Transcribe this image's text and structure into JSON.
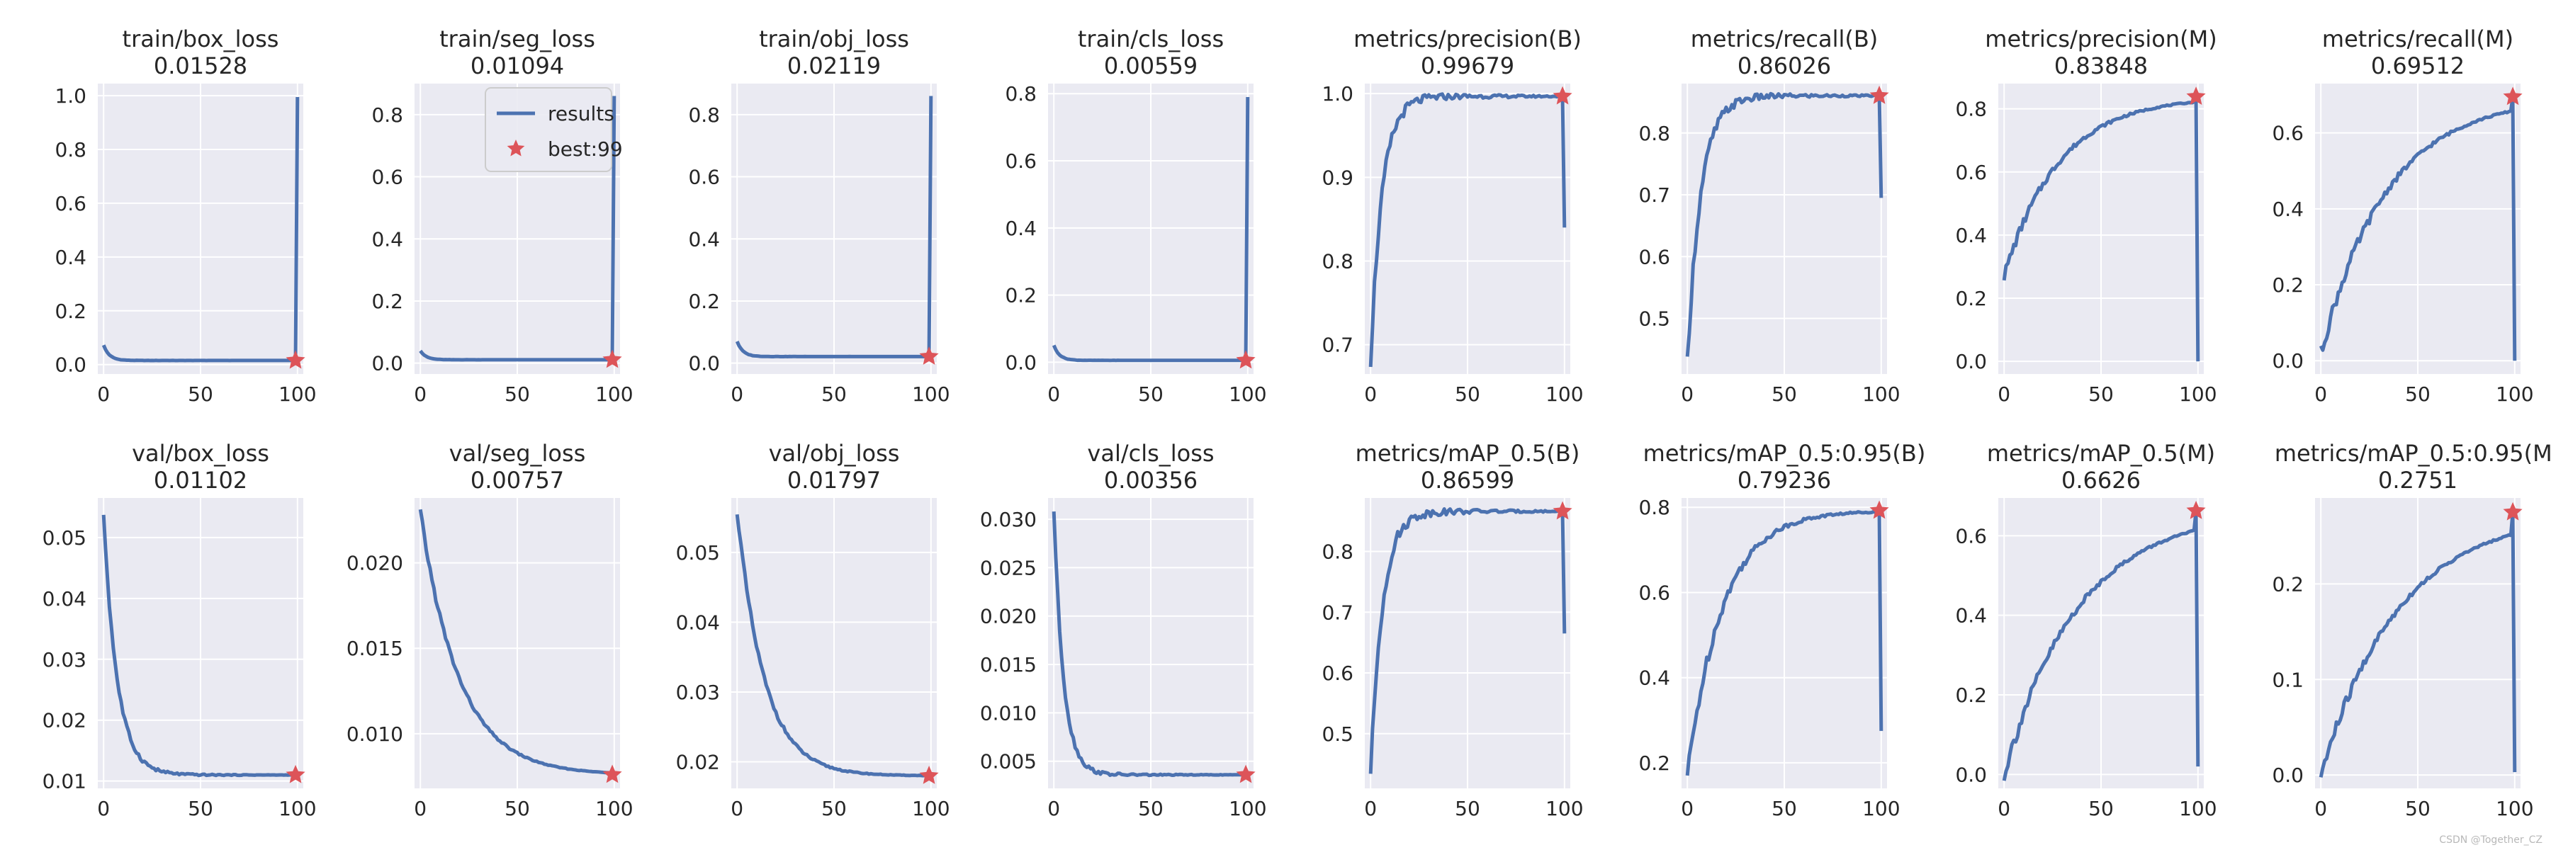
{
  "colors": {
    "line": "#4c72b0",
    "best_marker": "#dd5459",
    "axes_bg": "#eaeaf2",
    "grid": "#ffffff",
    "text": "#262626"
  },
  "watermark": "CSDN @Together_CZ",
  "chart_data": [
    {
      "type": "line",
      "metric": "train/box_loss",
      "final_value": "0.01528",
      "series": [
        {
          "name": "results",
          "start": 0.072,
          "decay_to": 0.0153,
          "last": 0.995
        }
      ],
      "x_ticks": [
        "0",
        "50",
        "100"
      ],
      "y_ticks": [
        "0.0",
        "0.2",
        "0.4",
        "0.6",
        "0.8",
        "1.0"
      ],
      "xlim": [
        -3,
        103
      ],
      "ylim": [
        -0.035,
        1.045
      ],
      "best": {
        "x": 99,
        "y": 0.0153
      }
    },
    {
      "type": "line",
      "metric": "train/seg_loss",
      "final_value": "0.01094",
      "series": [
        {
          "name": "results",
          "start": 0.04,
          "decay_to": 0.0109,
          "last": 0.86
        }
      ],
      "x_ticks": [
        "0",
        "50",
        "100"
      ],
      "y_ticks": [
        "0.0",
        "0.2",
        "0.4",
        "0.6",
        "0.8"
      ],
      "xlim": [
        -3,
        103
      ],
      "ylim": [
        -0.035,
        0.9
      ],
      "best": {
        "x": 99,
        "y": 0.0109
      },
      "legend": {
        "entries": [
          "results",
          "best:99"
        ],
        "placement": "top-right"
      }
    },
    {
      "type": "line",
      "metric": "train/obj_loss",
      "final_value": "0.02119",
      "series": [
        {
          "name": "results",
          "start": 0.07,
          "decay_to": 0.0212,
          "last": 0.86
        }
      ],
      "x_ticks": [
        "0",
        "50",
        "100"
      ],
      "y_ticks": [
        "0.0",
        "0.2",
        "0.4",
        "0.6",
        "0.8"
      ],
      "xlim": [
        -3,
        103
      ],
      "ylim": [
        -0.035,
        0.9
      ],
      "best": {
        "x": 99,
        "y": 0.0212
      }
    },
    {
      "type": "line",
      "metric": "train/cls_loss",
      "final_value": "0.00559",
      "series": [
        {
          "name": "results",
          "start": 0.05,
          "decay_to": 0.0056,
          "last": 0.79
        }
      ],
      "x_ticks": [
        "0",
        "50",
        "100"
      ],
      "y_ticks": [
        "0.0",
        "0.2",
        "0.4",
        "0.6",
        "0.8"
      ],
      "xlim": [
        -3,
        103
      ],
      "ylim": [
        -0.035,
        0.83
      ],
      "best": {
        "x": 99,
        "y": 0.0056
      }
    },
    {
      "type": "line",
      "metric": "metrics/precision(B)",
      "final_value": "0.99679",
      "series": [
        {
          "name": "results",
          "start": 0.68,
          "plateau": 0.9968,
          "rise_rate": 6,
          "last": 0.84
        }
      ],
      "x_ticks": [
        "0",
        "50",
        "100"
      ],
      "y_ticks": [
        "0.7",
        "0.8",
        "0.9",
        "1.0"
      ],
      "xlim": [
        -3,
        103
      ],
      "ylim": [
        0.665,
        1.012
      ],
      "best": {
        "x": 99,
        "y": 0.9968
      }
    },
    {
      "type": "line",
      "metric": "metrics/recall(B)",
      "final_value": "0.86026",
      "series": [
        {
          "name": "results",
          "start": 0.43,
          "plateau": 0.8603,
          "rise_rate": 7,
          "last": 0.695
        }
      ],
      "x_ticks": [
        "0",
        "50",
        "100"
      ],
      "y_ticks": [
        "0.5",
        "0.6",
        "0.7",
        "0.8"
      ],
      "xlim": [
        -3,
        103
      ],
      "ylim": [
        0.41,
        0.88
      ],
      "best": {
        "x": 99,
        "y": 0.8603
      }
    },
    {
      "type": "line",
      "metric": "metrics/precision(M)",
      "final_value": "0.83848",
      "series": [
        {
          "name": "results",
          "start": 0.27,
          "plateau": 0.8385,
          "rise_rate": 28,
          "last": 0.0
        }
      ],
      "x_ticks": [
        "0",
        "50",
        "100"
      ],
      "y_ticks": [
        "0.0",
        "0.2",
        "0.4",
        "0.6",
        "0.8"
      ],
      "xlim": [
        -3,
        103
      ],
      "ylim": [
        -0.04,
        0.88
      ],
      "best": {
        "x": 99,
        "y": 0.8385
      }
    },
    {
      "type": "line",
      "metric": "metrics/recall(M)",
      "final_value": "0.69512",
      "series": [
        {
          "name": "results",
          "start": 0.02,
          "plateau": 0.6951,
          "rise_rate": 34,
          "last": 0.0
        }
      ],
      "x_ticks": [
        "0",
        "50",
        "100"
      ],
      "y_ticks": [
        "0.0",
        "0.2",
        "0.4",
        "0.6"
      ],
      "xlim": [
        -3,
        103
      ],
      "ylim": [
        -0.035,
        0.73
      ],
      "best": {
        "x": 99,
        "y": 0.6951
      }
    },
    {
      "type": "line",
      "metric": "val/box_loss",
      "final_value": "0.01102",
      "series": [
        {
          "name": "results",
          "start": 0.054,
          "decay_to": 0.011,
          "decay_rate": 7
        }
      ],
      "x_ticks": [
        "0",
        "50",
        "100"
      ],
      "y_ticks": [
        "0.01",
        "0.02",
        "0.03",
        "0.04",
        "0.05"
      ],
      "xlim": [
        -3,
        103
      ],
      "ylim": [
        0.0088,
        0.0565
      ],
      "best": {
        "x": 99,
        "y": 0.011
      }
    },
    {
      "type": "line",
      "metric": "val/seg_loss",
      "final_value": "0.00757",
      "series": [
        {
          "name": "results",
          "start": 0.023,
          "decay_to": 0.0076,
          "decay_rate": 20
        }
      ],
      "x_ticks": [
        "0",
        "50",
        "100"
      ],
      "y_ticks": [
        "0.010",
        "0.015",
        "0.020"
      ],
      "xlim": [
        -3,
        103
      ],
      "ylim": [
        0.0068,
        0.0238
      ],
      "best": {
        "x": 99,
        "y": 0.0076
      }
    },
    {
      "type": "line",
      "metric": "val/obj_loss",
      "final_value": "0.01797",
      "series": [
        {
          "name": "results",
          "start": 0.056,
          "decay_to": 0.018,
          "decay_rate": 14
        }
      ],
      "x_ticks": [
        "0",
        "50",
        "100"
      ],
      "y_ticks": [
        "0.02",
        "0.03",
        "0.04",
        "0.05"
      ],
      "xlim": [
        -3,
        103
      ],
      "ylim": [
        0.0162,
        0.0578
      ],
      "best": {
        "x": 99,
        "y": 0.018
      }
    },
    {
      "type": "line",
      "metric": "val/cls_loss",
      "final_value": "0.00356",
      "series": [
        {
          "name": "results",
          "start": 0.031,
          "decay_to": 0.0036,
          "decay_rate": 5
        }
      ],
      "x_ticks": [
        "0",
        "50",
        "100"
      ],
      "y_ticks": [
        "0.005",
        "0.010",
        "0.015",
        "0.020",
        "0.025",
        "0.030"
      ],
      "xlim": [
        -3,
        103
      ],
      "ylim": [
        0.0022,
        0.0322
      ],
      "best": {
        "x": 99,
        "y": 0.0036
      }
    },
    {
      "type": "line",
      "metric": "metrics/mAP_0.5(B)",
      "final_value": "0.86599",
      "series": [
        {
          "name": "results",
          "start": 0.43,
          "plateau": 0.866,
          "rise_rate": 6,
          "last": 0.665
        }
      ],
      "x_ticks": [
        "0",
        "50",
        "100"
      ],
      "y_ticks": [
        "0.5",
        "0.6",
        "0.7",
        "0.8"
      ],
      "xlim": [
        -3,
        103
      ],
      "ylim": [
        0.41,
        0.888
      ],
      "best": {
        "x": 99,
        "y": 0.866
      }
    },
    {
      "type": "line",
      "metric": "metrics/mAP_0.5:0.95(B)",
      "final_value": "0.79236",
      "series": [
        {
          "name": "results",
          "start": 0.17,
          "plateau": 0.7924,
          "rise_rate": 18,
          "last": 0.275
        }
      ],
      "x_ticks": [
        "0",
        "50",
        "100"
      ],
      "y_ticks": [
        "0.2",
        "0.4",
        "0.6",
        "0.8"
      ],
      "xlim": [
        -3,
        103
      ],
      "ylim": [
        0.14,
        0.822
      ],
      "best": {
        "x": 99,
        "y": 0.7924
      }
    },
    {
      "type": "line",
      "metric": "metrics/mAP_0.5(M)",
      "final_value": "0.6626",
      "series": [
        {
          "name": "results",
          "start": 0.0,
          "plateau": 0.6626,
          "rise_rate": 38,
          "last": 0.02
        }
      ],
      "x_ticks": [
        "0",
        "50",
        "100"
      ],
      "y_ticks": [
        "0.0",
        "0.2",
        "0.4",
        "0.6"
      ],
      "xlim": [
        -3,
        103
      ],
      "ylim": [
        -0.035,
        0.695
      ],
      "best": {
        "x": 99,
        "y": 0.6626
      }
    },
    {
      "type": "line",
      "metric": "metrics/mAP_0.5:0.95(M)",
      "final_value": "0.2751",
      "series": [
        {
          "name": "results",
          "start": 0.0,
          "plateau": 0.2751,
          "rise_rate": 40,
          "last": 0.003
        }
      ],
      "x_ticks": [
        "0",
        "50",
        "100"
      ],
      "y_ticks": [
        "0.0",
        "0.1",
        "0.2"
      ],
      "xlim": [
        -3,
        103
      ],
      "ylim": [
        -0.014,
        0.29
      ],
      "best": {
        "x": 99,
        "y": 0.2751
      }
    }
  ]
}
